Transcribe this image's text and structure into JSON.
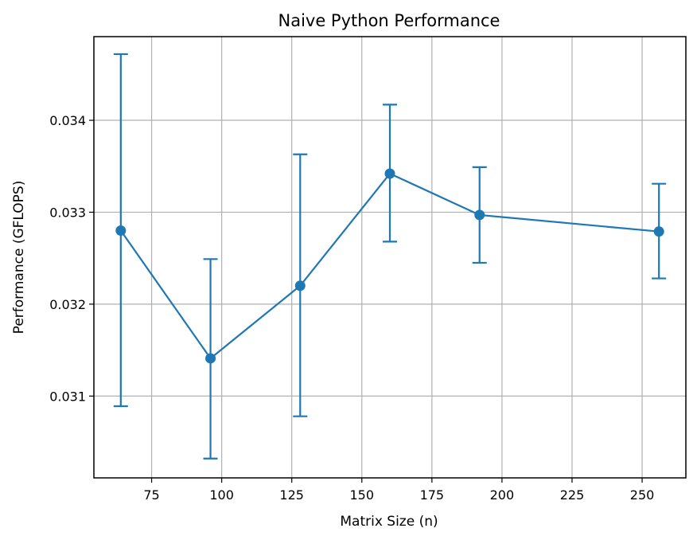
{
  "chart_data": {
    "type": "line",
    "title": "Naive Python Performance",
    "xlabel": "Matrix Size (n)",
    "ylabel": "Performance (GFLOPS)",
    "xlim": [
      54.4,
      265.6
    ],
    "ylim": [
      0.03011,
      0.03491
    ],
    "xticks": [
      75,
      100,
      125,
      150,
      175,
      200,
      225,
      250
    ],
    "yticks": [
      0.031,
      0.032,
      0.033,
      0.034
    ],
    "xtick_labels": [
      "75",
      "100",
      "125",
      "150",
      "175",
      "200",
      "225",
      "250"
    ],
    "ytick_labels": [
      "0.031",
      "0.032",
      "0.033",
      "0.034"
    ],
    "grid": true,
    "color": "#1f77b4",
    "series": [
      {
        "x": [
          64,
          96,
          128,
          160,
          192,
          256
        ],
        "y": [
          0.0328,
          0.03141,
          0.0322,
          0.03342,
          0.03297,
          0.03279
        ],
        "yerr_low": [
          0.03089,
          0.03032,
          0.03078,
          0.03268,
          0.03245,
          0.03228
        ],
        "yerr_high": [
          0.03472,
          0.03249,
          0.03363,
          0.03417,
          0.03349,
          0.03331
        ]
      }
    ]
  }
}
